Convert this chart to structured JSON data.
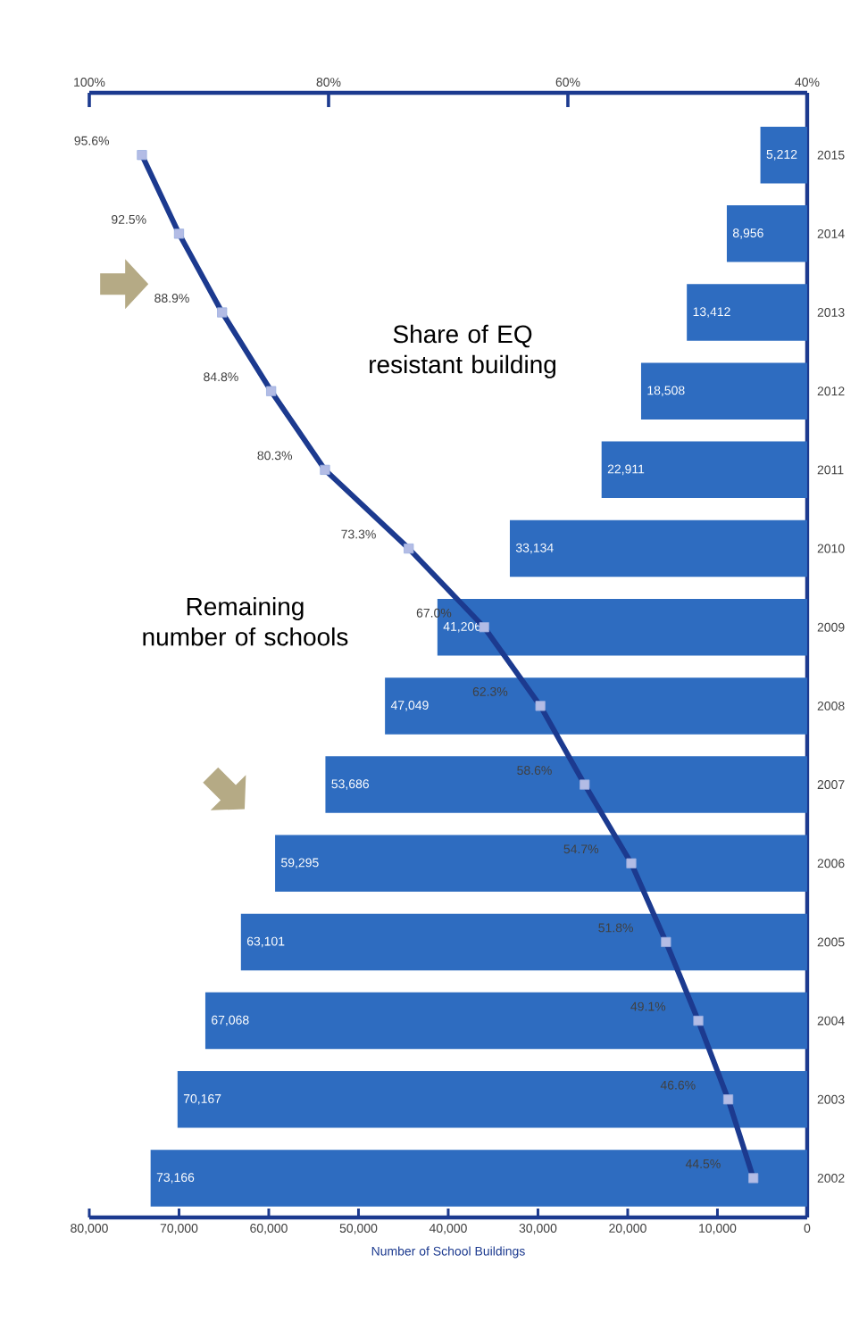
{
  "chart_data": {
    "type": "bar",
    "orientation": "horizontal",
    "categories": [
      "2015",
      "2014",
      "2013",
      "2012",
      "2011",
      "2010",
      "2009",
      "2008",
      "2007",
      "2006",
      "2005",
      "2004",
      "2003",
      "2002"
    ],
    "xlabel": "Number of School Buildings",
    "annotations": [
      "Share of EQ resistant building",
      "Remaining number of schools"
    ],
    "xlim": [
      80000,
      0
    ],
    "xticks": [
      {
        "value": 80000,
        "label": "80,000"
      },
      {
        "value": 70000,
        "label": "70,000"
      },
      {
        "value": 60000,
        "label": "60,000"
      },
      {
        "value": 50000,
        "label": "50,000"
      },
      {
        "value": 40000,
        "label": "40,000"
      },
      {
        "value": 30000,
        "label": "30,000"
      },
      {
        "value": 20000,
        "label": "20,000"
      },
      {
        "value": 10000,
        "label": "10,000"
      },
      0
    ],
    "x2lim": [
      100,
      40
    ],
    "x2ticks": [
      {
        "value": 100,
        "label": "100%"
      },
      {
        "value": 80,
        "label": "80%"
      },
      {
        "value": 60,
        "label": "60%"
      },
      {
        "value": 40,
        "label": "40%"
      }
    ],
    "marker": "square",
    "series": [
      {
        "color": "#2e6cc0",
        "values": [
          5212,
          8956,
          13412,
          18508,
          22911,
          33134,
          41206,
          47049,
          53686,
          59295,
          63101,
          67068,
          70167,
          73166
        ],
        "value_labels": [
          "5,212",
          "8,956",
          "13,412",
          "18,508",
          "22,911",
          "33,134",
          "41,206",
          "47,049",
          "53,686",
          "59,295",
          "63,101",
          "67,068",
          "70,167",
          "73,166"
        ]
      },
      {
        "type": "line",
        "axis": "x2",
        "color": "#1c3a8f",
        "values": [
          95.6,
          92.5,
          88.9,
          84.8,
          80.3,
          73.3,
          67.0,
          62.3,
          58.6,
          54.7,
          51.8,
          49.1,
          46.6,
          44.5
        ],
        "value_labels": [
          "95.6%",
          "92.5%",
          "88.9%",
          "84.8%",
          "80.3%",
          "73.3%",
          "67.0%",
          "62.3%",
          "58.6%",
          "54.7%",
          "51.8%",
          "49.1%",
          "46.6%",
          "44.5%"
        ]
      }
    ]
  }
}
